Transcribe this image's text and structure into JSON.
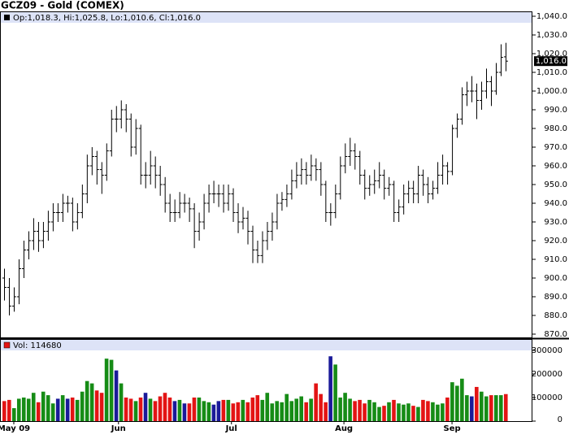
{
  "chart_data": {
    "type": "ohlc",
    "title": "GCZ09 - Gold (COMEX)",
    "price_legend": "Op:1,018.3, Hi:1,025.8, Lo:1,010.6, Cl:1,016.0",
    "volume_legend": "Vol: 114680",
    "last_close_label": "1,016.0",
    "bar_color": "#000000",
    "up_color": "#168c16",
    "down_color": "#e31414",
    "flat_color": "#1a1a99",
    "xticks": [
      {
        "value": 2,
        "label": "May 09"
      },
      {
        "value": 23.5,
        "label": "Jun"
      },
      {
        "value": 46.7,
        "label": "Jul"
      },
      {
        "value": 69.8,
        "label": "Aug"
      },
      {
        "value": 92,
        "label": "Sep"
      }
    ],
    "ylim": [
      870,
      1040
    ],
    "yticks": [
      {
        "value": 870,
        "label": "870.0"
      },
      {
        "value": 880,
        "label": "880.0"
      },
      {
        "value": 890,
        "label": "890.0"
      },
      {
        "value": 900,
        "label": "900.0"
      },
      {
        "value": 910,
        "label": "910.0"
      },
      {
        "value": 920,
        "label": "920.0"
      },
      {
        "value": 930,
        "label": "930.0"
      },
      {
        "value": 940,
        "label": "940.0"
      },
      {
        "value": 950,
        "label": "950.0"
      },
      {
        "value": 960,
        "label": "960.0"
      },
      {
        "value": 970,
        "label": "970.0"
      },
      {
        "value": 980,
        "label": "980.0"
      },
      {
        "value": 990,
        "label": "990.0"
      },
      {
        "value": 1000,
        "label": "1,000.0"
      },
      {
        "value": 1010,
        "label": "1,010.0"
      },
      {
        "value": 1020,
        "label": "1,020.0"
      },
      {
        "value": 1030,
        "label": "1,030.0"
      },
      {
        "value": 1040,
        "label": "1,040.0"
      }
    ],
    "y2lim": [
      0,
      300000
    ],
    "y2ticks": [
      0,
      100000,
      200000,
      300000
    ],
    "open": [
      900,
      895,
      885,
      890,
      905,
      915,
      920,
      925,
      920,
      925,
      930,
      935,
      935,
      940,
      940,
      930,
      935,
      945,
      960,
      965,
      958,
      955,
      968,
      985,
      985,
      990,
      985,
      970,
      980,
      955,
      955,
      960,
      955,
      950,
      940,
      935,
      935,
      940,
      940,
      937,
      925,
      930,
      940,
      945,
      945,
      945,
      940,
      945,
      935,
      930,
      932,
      925,
      915,
      912,
      920,
      925,
      930,
      940,
      942,
      945,
      952,
      955,
      958,
      955,
      960,
      958,
      950,
      935,
      935,
      945,
      960,
      965,
      968,
      965,
      955,
      948,
      950,
      952,
      955,
      948,
      950,
      935,
      938,
      945,
      948,
      945,
      955,
      950,
      945,
      948,
      955,
      960,
      957,
      980,
      985,
      998,
      1000,
      1000,
      995,
      1000,
      1005,
      1000,
      1010,
      1018.3
    ],
    "high": [
      905,
      900,
      895,
      910,
      920,
      925,
      932,
      930,
      930,
      936,
      940,
      940,
      945,
      944,
      943,
      940,
      950,
      966,
      970,
      968,
      962,
      972,
      990,
      992,
      995,
      993,
      988,
      985,
      982,
      962,
      968,
      965,
      960,
      954,
      945,
      942,
      946,
      945,
      943,
      940,
      935,
      945,
      950,
      952,
      950,
      950,
      950,
      948,
      940,
      938,
      936,
      928,
      920,
      925,
      930,
      935,
      945,
      946,
      950,
      958,
      962,
      964,
      962,
      966,
      964,
      962,
      952,
      940,
      950,
      965,
      972,
      975,
      972,
      968,
      958,
      955,
      958,
      962,
      958,
      954,
      952,
      942,
      950,
      952,
      952,
      960,
      958,
      954,
      952,
      962,
      966,
      962,
      982,
      988,
      1002,
      1005,
      1008,
      1004,
      1005,
      1012,
      1008,
      1015,
      1025,
      1025.8
    ],
    "low": [
      888,
      880,
      882,
      886,
      900,
      910,
      915,
      914,
      916,
      920,
      925,
      930,
      930,
      935,
      925,
      926,
      932,
      940,
      955,
      950,
      945,
      952,
      965,
      978,
      980,
      978,
      965,
      966,
      950,
      948,
      950,
      948,
      944,
      935,
      930,
      930,
      932,
      935,
      930,
      916,
      920,
      926,
      935,
      940,
      938,
      935,
      936,
      930,
      924,
      926,
      918,
      908,
      908,
      908,
      915,
      920,
      926,
      936,
      938,
      942,
      948,
      950,
      950,
      952,
      952,
      944,
      930,
      928,
      932,
      942,
      956,
      960,
      958,
      950,
      942,
      944,
      945,
      948,
      942,
      944,
      930,
      930,
      934,
      940,
      940,
      940,
      944,
      940,
      942,
      945,
      950,
      950,
      955,
      975,
      982,
      992,
      994,
      985,
      990,
      996,
      992,
      998,
      1008,
      1010.6
    ],
    "close": [
      895,
      885,
      890,
      905,
      915,
      920,
      925,
      920,
      925,
      930,
      935,
      935,
      940,
      940,
      930,
      935,
      945,
      960,
      965,
      958,
      955,
      968,
      985,
      985,
      990,
      985,
      970,
      980,
      955,
      955,
      960,
      955,
      950,
      940,
      935,
      935,
      940,
      940,
      937,
      925,
      930,
      940,
      945,
      945,
      945,
      940,
      945,
      935,
      930,
      932,
      925,
      915,
      912,
      920,
      925,
      930,
      940,
      942,
      945,
      952,
      955,
      958,
      955,
      960,
      958,
      950,
      935,
      935,
      945,
      960,
      965,
      968,
      965,
      955,
      948,
      950,
      952,
      955,
      948,
      950,
      935,
      938,
      945,
      948,
      945,
      955,
      950,
      945,
      948,
      955,
      960,
      957,
      980,
      985,
      998,
      1000,
      1000,
      995,
      1000,
      1005,
      1000,
      1010,
      1018,
      1016
    ],
    "volume": [
      85000,
      90000,
      55000,
      95000,
      100000,
      95000,
      120000,
      80000,
      125000,
      110000,
      75000,
      95000,
      110000,
      95000,
      100000,
      90000,
      125000,
      170000,
      160000,
      130000,
      120000,
      265000,
      260000,
      215000,
      160000,
      100000,
      95000,
      85000,
      100000,
      120000,
      95000,
      85000,
      105000,
      120000,
      100000,
      85000,
      90000,
      75000,
      75000,
      100000,
      100000,
      85000,
      80000,
      70000,
      85000,
      90000,
      90000,
      75000,
      80000,
      90000,
      80000,
      100000,
      110000,
      90000,
      120000,
      75000,
      85000,
      80000,
      115000,
      85000,
      95000,
      105000,
      80000,
      95000,
      160000,
      115000,
      80000,
      275000,
      240000,
      100000,
      120000,
      95000,
      85000,
      90000,
      75000,
      90000,
      80000,
      60000,
      65000,
      80000,
      90000,
      75000,
      70000,
      75000,
      65000,
      60000,
      90000,
      85000,
      80000,
      70000,
      75000,
      100000,
      165000,
      150000,
      180000,
      110000,
      105000,
      145000,
      125000,
      105000,
      110000,
      110000,
      110000,
      114680
    ]
  }
}
